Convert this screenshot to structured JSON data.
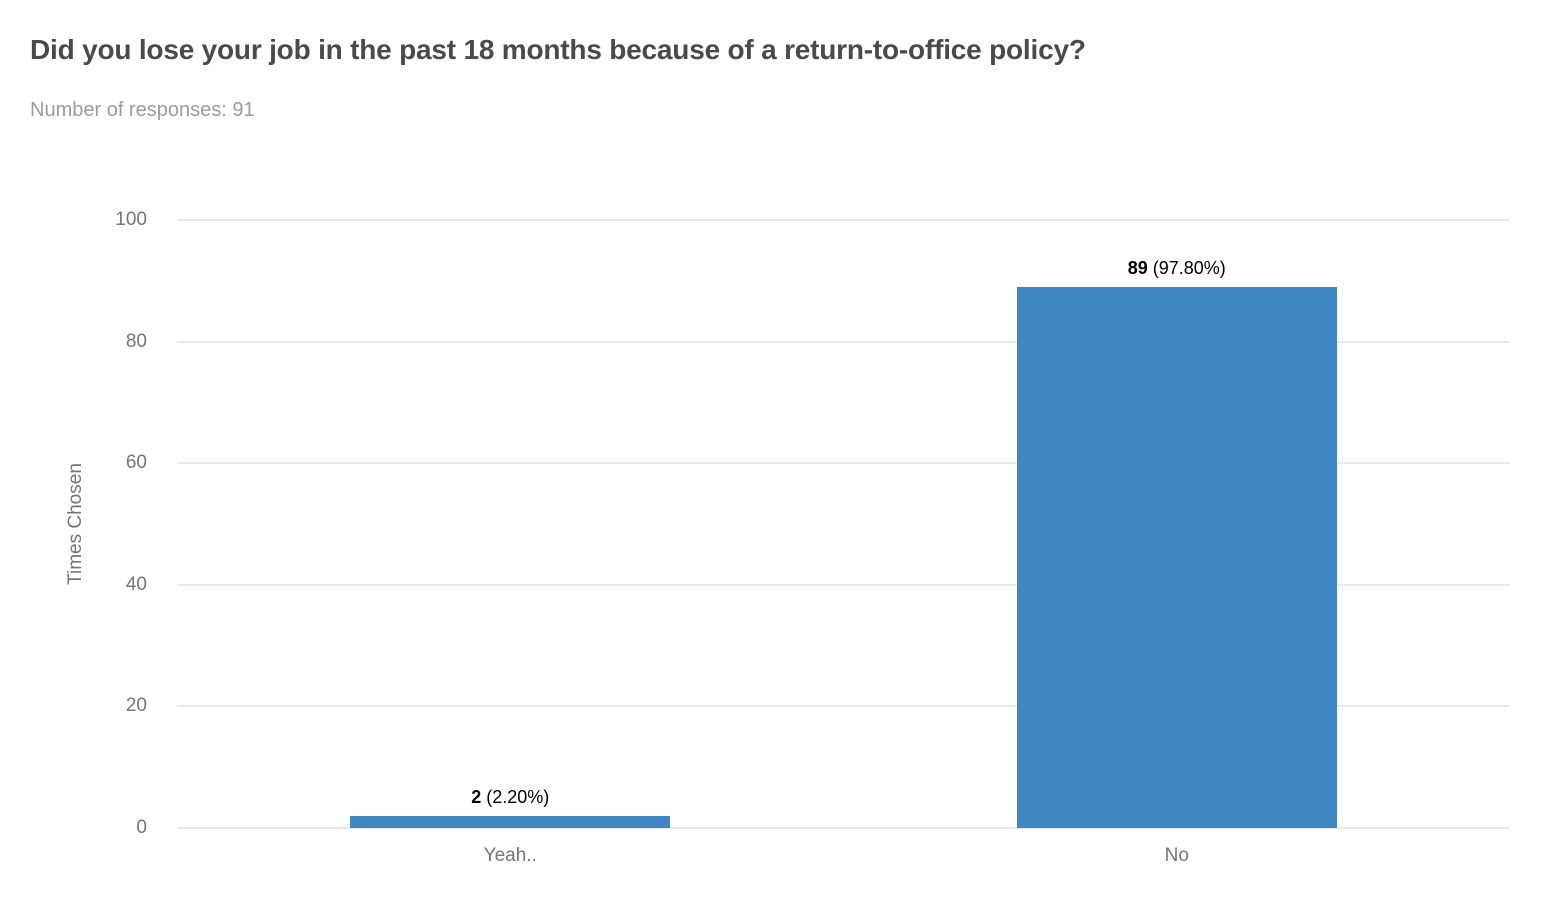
{
  "chart_data": {
    "type": "bar",
    "title": "Did you lose your job in the past 18 months because of a return-to-office policy?",
    "subtitle": "Number of responses: 91",
    "categories": [
      "Yeah..",
      "No"
    ],
    "values": [
      2,
      89
    ],
    "percent_labels": [
      "2.20%",
      "97.80%"
    ],
    "value_labels": [
      "2 (2.20%)",
      "89 (97.80%)"
    ],
    "xlabel": "",
    "ylabel": "Times Chosen",
    "ylim": [
      0,
      100
    ],
    "yticks": [
      0,
      20,
      40,
      60,
      80,
      100
    ],
    "grid": true,
    "legend": "none",
    "colors": {
      "bar": "#3e87c3",
      "gridline": "#e8e8e8",
      "axis_text": "#757575",
      "data_label": "#000000",
      "title": "#4a4a4a",
      "subtitle": "#9b9b9b"
    }
  }
}
